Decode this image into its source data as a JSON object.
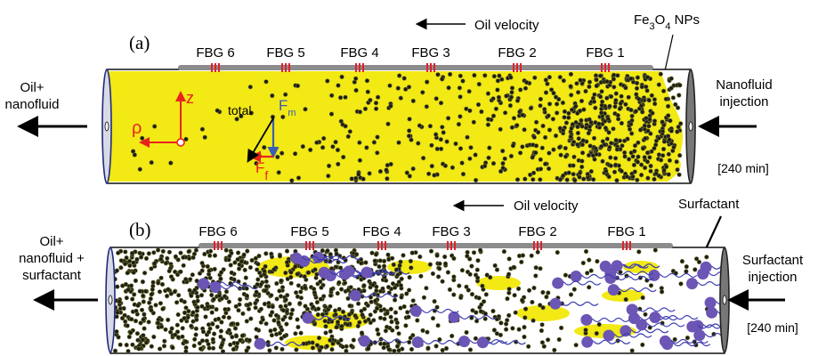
{
  "panels": [
    {
      "letter": "(a)",
      "flow_label": "Oil velocity",
      "sensors": [
        "FBG 6",
        "FBG 5",
        "FBG 4",
        "FBG 3",
        "FBG 2",
        "FBG 1"
      ],
      "outlet_label": [
        "Oil+",
        "nanofluid"
      ],
      "inlet_label": [
        "Nanofluid",
        "injection"
      ],
      "time_label": "[240 min]",
      "particle_label": {
        "base": "Fe",
        "sub1": "3",
        "mid": "O",
        "sub2": "4",
        "tail": " NPs"
      },
      "force_labels": {
        "z": "z",
        "rho": "ρ",
        "total": "total",
        "fm": "F",
        "fm_sub": "m",
        "ff": "F",
        "ff_sub": "f"
      }
    },
    {
      "letter": "(b)",
      "flow_label": "Oil velocity",
      "sensors": [
        "FBG 6",
        "FBG 5",
        "FBG 4",
        "FBG 3",
        "FBG 2",
        "FBG 1"
      ],
      "outlet_label": [
        "Oil+",
        "nanofluid +",
        "surfactant"
      ],
      "inlet_label": [
        "Surfactant",
        "injection"
      ],
      "time_label": "[240 min]",
      "surfactant_label": "Surfactant"
    }
  ],
  "colors": {
    "fluid": "#f2e915",
    "particle": "#1e1e14",
    "particle_edge": "#7a7a3a",
    "surfactant": "#6b55b5",
    "tail": "#3b3bb0",
    "fiber": "#8c8c8c",
    "grating": "#e0202a",
    "axis": "#e8231d",
    "fm_arrow": "#3a5fb0"
  }
}
